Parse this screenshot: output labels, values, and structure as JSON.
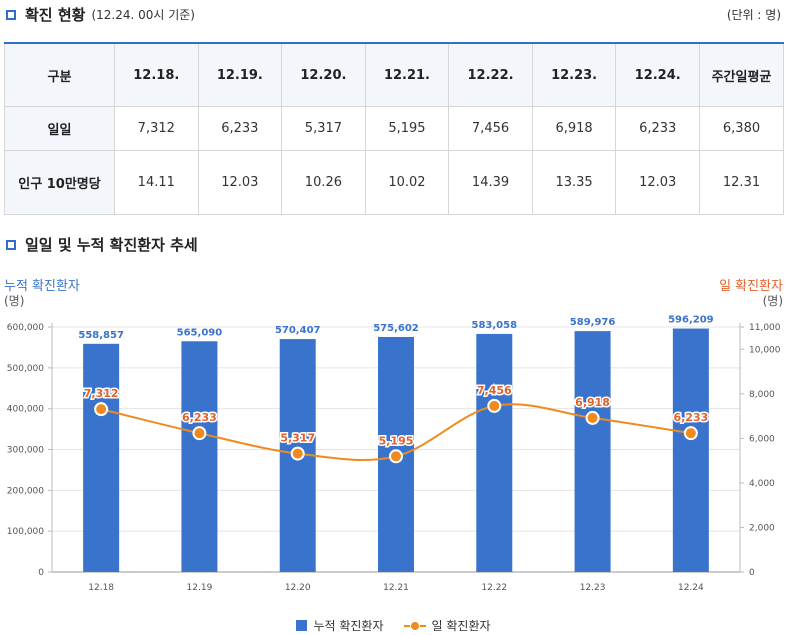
{
  "header": {
    "title": "확진 현황",
    "subtitle": "(12.24. 00시 기준)",
    "unit": "(단위 : 명)"
  },
  "table": {
    "columns": [
      "구분",
      "12.18.",
      "12.19.",
      "12.20.",
      "12.21.",
      "12.22.",
      "12.23.",
      "12.24.",
      "주간일평균"
    ],
    "rows": [
      {
        "label": "일일",
        "values": [
          "7,312",
          "6,233",
          "5,317",
          "5,195",
          "7,456",
          "6,918",
          "6,233",
          "6,380"
        ]
      },
      {
        "label": "인구 10만명당",
        "values": [
          "14.11",
          "12.03",
          "10.26",
          "10.02",
          "14.39",
          "13.35",
          "12.03",
          "12.31"
        ]
      }
    ]
  },
  "chart_section": {
    "title": "일일 및 누적 확진환자 추세"
  },
  "chart_data": {
    "type": "bar+line",
    "categories": [
      "12.18",
      "12.19",
      "12.20",
      "12.21",
      "12.22",
      "12.23",
      "12.24"
    ],
    "series": [
      {
        "name": "누적 확진환자",
        "type": "bar",
        "axis": "left",
        "values": [
          558857,
          565090,
          570407,
          575602,
          583058,
          589976,
          596209
        ],
        "labels": [
          "558,857",
          "565,090",
          "570,407",
          "575,602",
          "583,058",
          "589,976",
          "596,209"
        ],
        "color": "#3a73cc"
      },
      {
        "name": "일 확진환자",
        "type": "line",
        "axis": "right",
        "values": [
          7312,
          6233,
          5317,
          5195,
          7456,
          6918,
          6233
        ],
        "labels": [
          "7,312",
          "6,233",
          "5,317",
          "5,195",
          "7,456",
          "6,918",
          "6,233"
        ],
        "color": "#f08a1e"
      }
    ],
    "left_axis": {
      "label": "누적 확진환자",
      "unit": "(명)",
      "ylim": [
        0,
        600000
      ],
      "ticks": [
        0,
        100000,
        200000,
        300000,
        400000,
        500000,
        600000
      ],
      "tick_labels": [
        "0",
        "100,000",
        "200,000",
        "300,000",
        "400,000",
        "500,000",
        "600,000"
      ],
      "color": "#3a73cc"
    },
    "right_axis": {
      "label": "일 확진환자",
      "unit": "(명)",
      "ylim": [
        0,
        11000
      ],
      "ticks": [
        0,
        2000,
        4000,
        6000,
        8000,
        10000,
        11000
      ],
      "tick_labels": [
        "0",
        "2,000",
        "4,000",
        "6,000",
        "8,000",
        "10,000",
        "11,000"
      ],
      "color": "#e2622b"
    },
    "legend": [
      "누적 확진환자",
      "일 확진환자"
    ]
  }
}
